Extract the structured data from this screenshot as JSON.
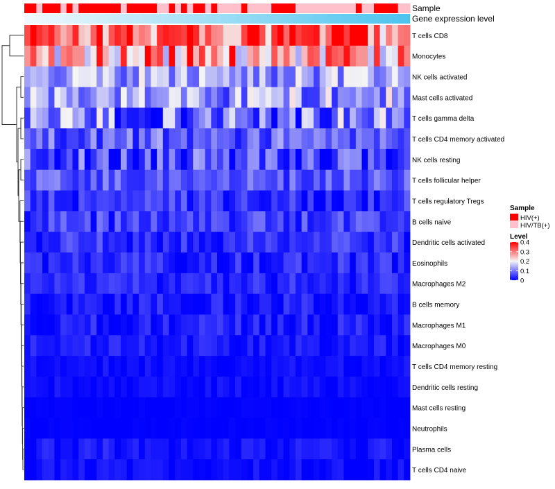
{
  "chart_data": {
    "type": "heatmap",
    "title": "",
    "annotations": [
      {
        "name": "Sample",
        "kind": "categorical"
      },
      {
        "name": "Gene expression level",
        "kind": "gradient"
      }
    ],
    "sample_groups": [
      {
        "label": "HIV(+)",
        "color": "#ff0000"
      },
      {
        "label": "HIV/TB(+)",
        "color": "#ffc0cb"
      }
    ],
    "sample_pattern": "HHBHHHBHBHHHHHHHBHHHHHBBHBHBHHBHBBBBHBBBBHHHHBBBBBBBBBBHBBHHHHBB",
    "level_legend": {
      "title": "Level",
      "ticks": [
        0,
        0.1,
        0.2,
        0.3,
        0.4
      ],
      "max": 0.4,
      "low_color": "#0000ff",
      "mid_color": "#f5f5f5",
      "high_color": "#ff0000"
    },
    "legend_titles": {
      "sample": "Sample",
      "level": "Level"
    },
    "rows": [
      "T cells CD8",
      "Monocytes",
      "NK cells activated",
      "Mast cells activated",
      "T cells gamma delta",
      "T cells CD4 memory activated",
      "NK cells resting",
      "T cells follicular helper",
      "T cells regulatory  Tregs",
      "B cells naive",
      "Dendritic cells activated",
      "Eosinophils",
      "Macrophages M2",
      "B cells memory",
      "Macrophages M1",
      "Macrophages M0",
      "T cells CD4 memory resting",
      "Dendritic cells resting",
      "Mast cells resting",
      "Neutrophils",
      "Plasma cells",
      "T cells CD4 naive"
    ],
    "row_mean_levels": [
      0.33,
      0.27,
      0.13,
      0.13,
      0.1,
      0.08,
      0.06,
      0.07,
      0.04,
      0.05,
      0.04,
      0.03,
      0.03,
      0.02,
      0.02,
      0.02,
      0.01,
      0.01,
      0.0,
      0.0,
      0.01,
      0.01
    ],
    "row_level_spread": [
      0.09,
      0.09,
      0.05,
      0.06,
      0.07,
      0.04,
      0.05,
      0.03,
      0.03,
      0.03,
      0.025,
      0.025,
      0.02,
      0.02,
      0.02,
      0.015,
      0.01,
      0.01,
      0.003,
      0.003,
      0.02,
      0.012
    ],
    "column_count": 64,
    "dendrogram": "row clustering tree (left)"
  }
}
